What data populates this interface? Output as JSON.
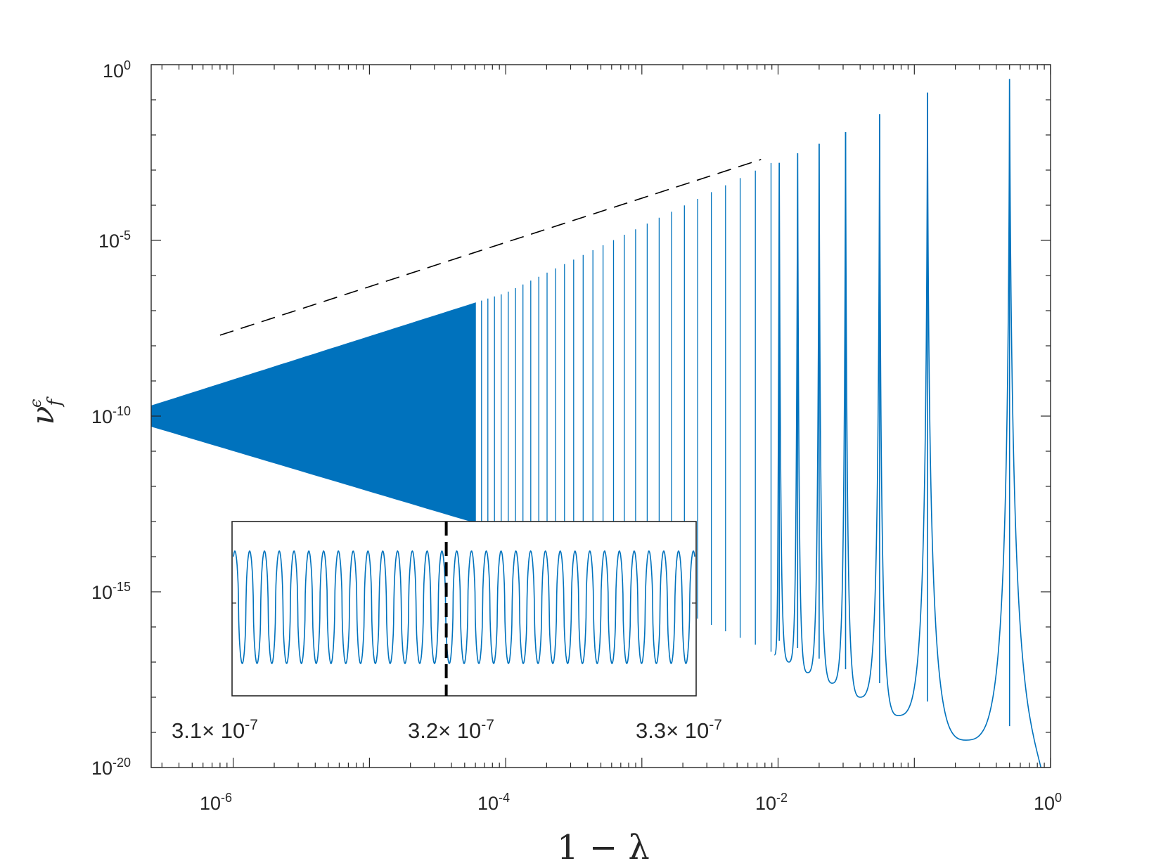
{
  "chart_data": [
    {
      "type": "line",
      "xscale": "log",
      "yscale": "log",
      "xlim": [
        2.5e-07,
        1
      ],
      "ylim": [
        1e-20,
        1
      ],
      "xlabel": "1 − λ",
      "ylabel_base": "ν",
      "ylabel_sup": "ϵ",
      "ylabel_sub": "f",
      "x_ticks": [
        {
          "value": 1e-06,
          "label_base": "10",
          "label_exp": "-6"
        },
        {
          "value": 0.0001,
          "label_base": "10",
          "label_exp": "-4"
        },
        {
          "value": 0.01,
          "label_base": "10",
          "label_exp": "-2"
        },
        {
          "value": 1,
          "label_base": "10",
          "label_exp": "0"
        }
      ],
      "y_ticks": [
        {
          "value": 1e-20,
          "label_base": "10",
          "label_exp": "-20"
        },
        {
          "value": 1e-15,
          "label_base": "10",
          "label_exp": "-15"
        },
        {
          "value": 1e-10,
          "label_base": "10",
          "label_exp": "-10"
        },
        {
          "value": 1e-05,
          "label_base": "10",
          "label_exp": "-5"
        },
        {
          "value": 1,
          "label_base": "10",
          "label_exp": "0"
        }
      ],
      "series": [
        {
          "kind": "oscillating-resonances",
          "color": "#0072BD",
          "peaks": [
            {
              "x": 0.5,
              "y": 0.39
            },
            {
              "x": 0.125,
              "y": 0.16
            },
            {
              "x": 0.0556,
              "y": 0.039
            },
            {
              "x": 0.0313,
              "y": 0.012
            },
            {
              "x": 0.02,
              "y": 0.0056
            },
            {
              "x": 0.0139,
              "y": 0.003
            },
            {
              "x": 0.0102,
              "y": 0.0016
            }
          ],
          "troughs": [
            {
              "x": 0.24,
              "y": 6e-20
            },
            {
              "x": 0.076,
              "y": 3e-19
            },
            {
              "x": 0.04,
              "y": 1e-18
            },
            {
              "x": 0.025,
              "y": 2.5e-18
            },
            {
              "x": 0.0165,
              "y": 5e-18
            },
            {
              "x": 0.012,
              "y": 1e-17
            },
            {
              "x": 0.0094,
              "y": 1.6e-17
            }
          ],
          "envelope_upper": [
            {
              "x": 2.5e-07,
              "y": 2e-10
            },
            {
              "x": 0.0001,
              "y": 3.2e-07
            },
            {
              "x": 0.01,
              "y": 0.002
            },
            {
              "x": 0.5,
              "y": 0.39
            }
          ],
          "envelope_lower": [
            {
              "x": 2.5e-07,
              "y": 5e-11
            },
            {
              "x": 0.0001,
              "y": 5e-14
            },
            {
              "x": 0.01,
              "y": 1.6e-17
            },
            {
              "x": 0.24,
              "y": 6e-20
            }
          ],
          "tail": [
            {
              "x": 0.5,
              "y": 0.39
            },
            {
              "x": 0.63,
              "y": 1e-18
            },
            {
              "x": 0.85,
              "y": 1e-20
            }
          ]
        },
        {
          "kind": "reference-slope",
          "style": "dashed",
          "color": "#000000",
          "points": [
            {
              "x": 8e-07,
              "y": 2e-08
            },
            {
              "x": 0.0075,
              "y": 0.002
            }
          ]
        }
      ]
    },
    {
      "type": "line",
      "role": "inset",
      "xlim": [
        3.08e-07,
        3.34e-07
      ],
      "x_tick_labels": [
        {
          "value": 3.1e-07,
          "label": "3.1× 10",
          "exp": "-7"
        },
        {
          "value": 3.2e-07,
          "label": "3.2× 10",
          "exp": "-7"
        },
        {
          "value": 3.3e-07,
          "label": "3.3× 10",
          "exp": "-7"
        }
      ],
      "series": [
        {
          "kind": "periodic-oscillation",
          "color": "#0072BD",
          "cycles": 31
        },
        {
          "kind": "marker-line",
          "style": "dashed",
          "color": "#000000",
          "x": 3.2e-07
        }
      ]
    }
  ]
}
